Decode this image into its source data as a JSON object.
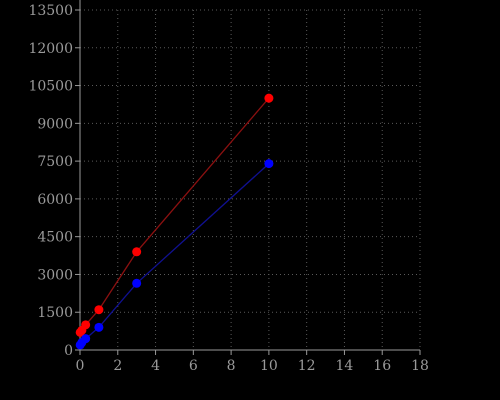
{
  "chart_data": {
    "type": "scatter",
    "title": "",
    "xlabel": "",
    "ylabel": "",
    "xlim": [
      0,
      18
    ],
    "ylim": [
      0,
      13500
    ],
    "x_ticks": [
      0,
      2,
      4,
      6,
      8,
      10,
      12,
      14,
      16,
      18
    ],
    "y_ticks": [
      0,
      1500,
      3000,
      4500,
      6000,
      7500,
      9000,
      10500,
      12000,
      13500
    ],
    "grid": true,
    "series": [
      {
        "color": "#ff0000",
        "line_color": "#8b1010",
        "points": [
          {
            "x": 0.01,
            "y": 700
          },
          {
            "x": 0.1,
            "y": 780
          },
          {
            "x": 0.3,
            "y": 1000
          },
          {
            "x": 1,
            "y": 1600
          },
          {
            "x": 3,
            "y": 3900
          },
          {
            "x": 10,
            "y": 10000
          }
        ]
      },
      {
        "color": "#0000ff",
        "line_color": "#101090",
        "points": [
          {
            "x": 0.01,
            "y": 200
          },
          {
            "x": 0.1,
            "y": 300
          },
          {
            "x": 0.3,
            "y": 450
          },
          {
            "x": 1,
            "y": 900
          },
          {
            "x": 3,
            "y": 2650
          },
          {
            "x": 10,
            "y": 7400
          }
        ]
      }
    ]
  }
}
